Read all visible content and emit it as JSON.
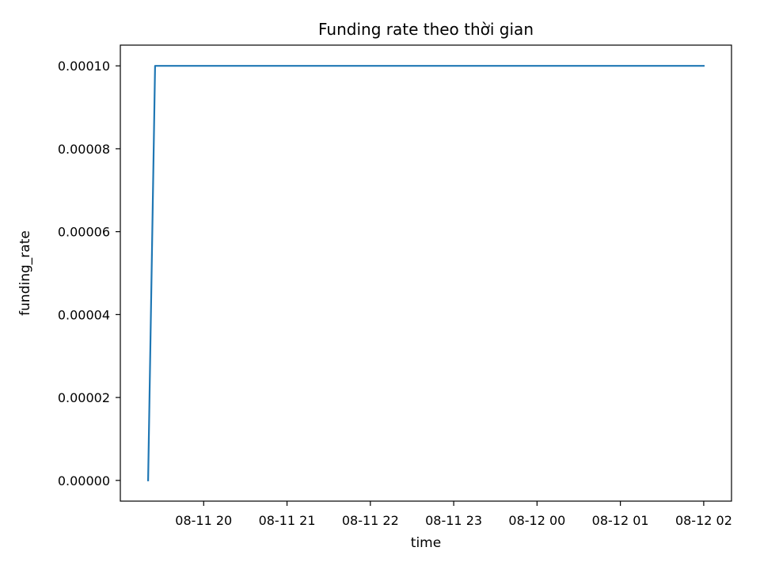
{
  "chart_data": {
    "type": "line",
    "title": "Funding rate theo thời gian",
    "xlabel": "time",
    "ylabel": "funding_rate",
    "x_ticks": [
      "08-11 20",
      "08-11 21",
      "08-11 22",
      "08-11 23",
      "08-12 00",
      "08-12 01",
      "08-12 02"
    ],
    "x_tick_times": [
      "2024-08-11 20:00",
      "2024-08-11 21:00",
      "2024-08-11 22:00",
      "2024-08-11 23:00",
      "2024-08-12 00:00",
      "2024-08-12 01:00",
      "2024-08-12 02:00"
    ],
    "y_ticks": [
      "0.00000",
      "0.00002",
      "0.00004",
      "0.00006",
      "0.00008",
      "0.00010"
    ],
    "y_tick_values": [
      0,
      2e-05,
      4e-05,
      6e-05,
      8e-05,
      0.0001
    ],
    "xlim": [
      "2024-08-11 19:00",
      "2024-08-12 02:20"
    ],
    "ylim": [
      -5e-06,
      0.000105
    ],
    "grid": false,
    "series": [
      {
        "color": "#1f77b4",
        "x": [
          "2024-08-11 19:20",
          "2024-08-11 19:25",
          "2024-08-12 02:00"
        ],
        "y": [
          0,
          0.0001,
          0.0001
        ]
      }
    ]
  }
}
